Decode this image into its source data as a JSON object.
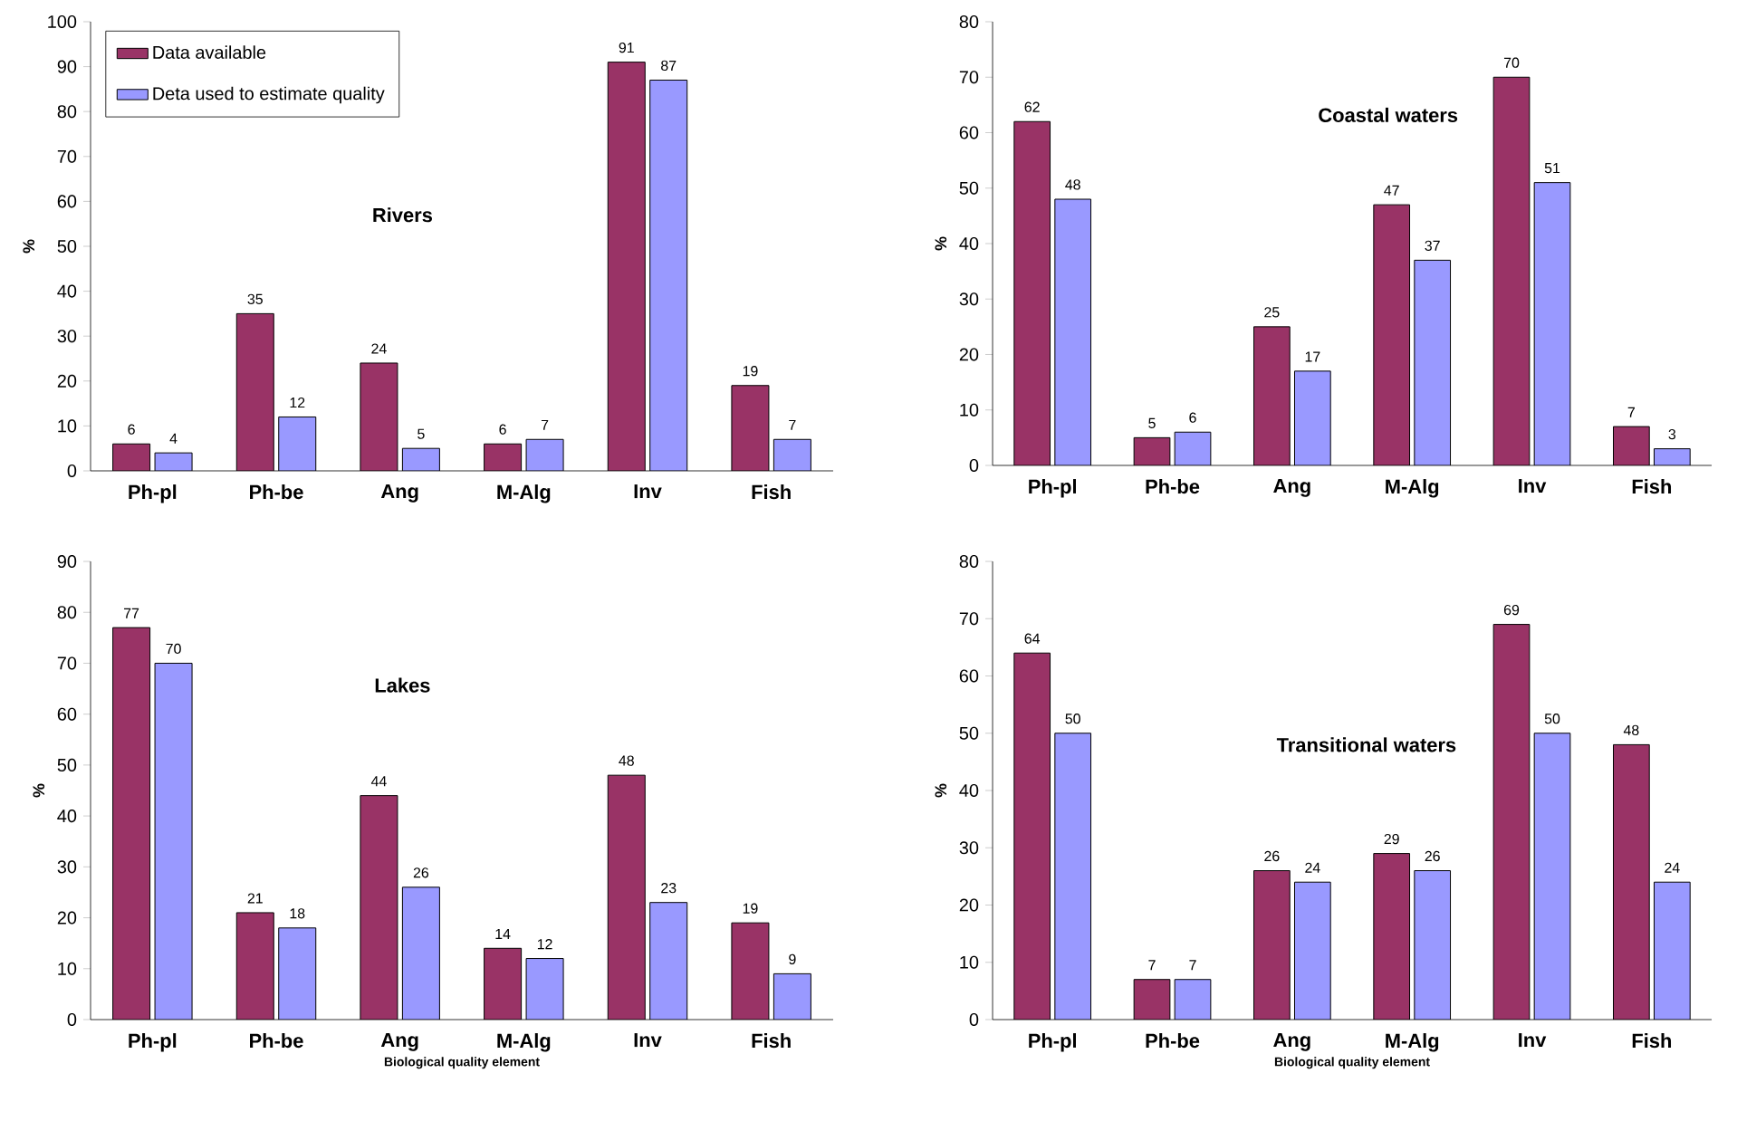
{
  "chart_data": [
    {
      "type": "bar",
      "title": "Rivers",
      "ylabel": "%",
      "categories": [
        "Ph-pl",
        "Ph-be",
        "Ang",
        "M-Alg",
        "Inv",
        "Fish"
      ],
      "ylim": [
        0,
        100
      ],
      "yticks": [
        0,
        10,
        20,
        30,
        40,
        50,
        60,
        70,
        80,
        90,
        100
      ],
      "data_labels": true,
      "legend": "top left",
      "series": [
        {
          "name": "Data available",
          "color": "#993366",
          "values": [
            6,
            35,
            24,
            6,
            91,
            19
          ]
        },
        {
          "name": "Deta used to estimate quality",
          "color": "#9999ff",
          "values": [
            4,
            12,
            5,
            7,
            87,
            7
          ]
        }
      ]
    },
    {
      "type": "bar",
      "title": "Coastal waters",
      "ylabel": "%",
      "categories": [
        "Ph-pl",
        "Ph-be",
        "Ang",
        "M-Alg",
        "Inv",
        "Fish"
      ],
      "ylim": [
        0,
        80
      ],
      "yticks": [
        0,
        10,
        20,
        30,
        40,
        50,
        60,
        70,
        80
      ],
      "data_labels": true,
      "series": [
        {
          "color": "#993366",
          "values": [
            62,
            5,
            25,
            47,
            70,
            7
          ]
        },
        {
          "color": "#9999ff",
          "values": [
            48,
            6,
            17,
            37,
            51,
            3
          ]
        }
      ]
    },
    {
      "type": "bar",
      "title": "Lakes",
      "ylabel": "%",
      "xlabel": "Biological quality element",
      "categories": [
        "Ph-pl",
        "Ph-be",
        "Ang",
        "M-Alg",
        "Inv",
        "Fish"
      ],
      "ylim": [
        0,
        90
      ],
      "yticks": [
        0,
        10,
        20,
        30,
        40,
        50,
        60,
        70,
        80,
        90
      ],
      "data_labels": true,
      "series": [
        {
          "color": "#993366",
          "values": [
            77,
            21,
            44,
            14,
            48,
            19
          ]
        },
        {
          "color": "#9999ff",
          "values": [
            70,
            18,
            26,
            12,
            23,
            9
          ]
        }
      ]
    },
    {
      "type": "bar",
      "title": "Transitional waters",
      "ylabel": "%",
      "xlabel": "Biological quality element",
      "categories": [
        "Ph-pl",
        "Ph-be",
        "Ang",
        "M-Alg",
        "Inv",
        "Fish"
      ],
      "ylim": [
        0,
        80
      ],
      "yticks": [
        0,
        10,
        20,
        30,
        40,
        50,
        60,
        70,
        80
      ],
      "data_labels": true,
      "series": [
        {
          "color": "#993366",
          "values": [
            64,
            7,
            26,
            29,
            69,
            48
          ]
        },
        {
          "color": "#9999ff",
          "values": [
            50,
            7,
            24,
            26,
            50,
            24
          ]
        }
      ]
    }
  ]
}
